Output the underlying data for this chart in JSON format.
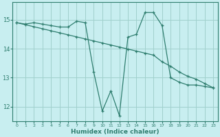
{
  "xlabel": "Humidex (Indice chaleur)",
  "bg_color": "#c8eef0",
  "line_color": "#2e7d6e",
  "grid_color": "#a0d0cc",
  "xlim": [
    -0.5,
    23.5
  ],
  "ylim": [
    11.5,
    15.6
  ],
  "yticks": [
    12,
    13,
    14,
    15
  ],
  "xticks": [
    0,
    1,
    2,
    3,
    4,
    5,
    6,
    7,
    8,
    9,
    10,
    11,
    12,
    13,
    14,
    15,
    16,
    17,
    18,
    19,
    20,
    21,
    22,
    23
  ],
  "line1_x": [
    0,
    1,
    2,
    3,
    4,
    5,
    6,
    7,
    8,
    9,
    10,
    11,
    12,
    13,
    14,
    15,
    16,
    17,
    18,
    19,
    20,
    21,
    22,
    23
  ],
  "line1_y": [
    14.9,
    14.85,
    14.9,
    14.85,
    14.8,
    14.75,
    14.75,
    14.95,
    14.9,
    13.2,
    11.85,
    12.55,
    11.7,
    14.4,
    14.5,
    15.25,
    15.25,
    14.8,
    13.0,
    12.85,
    12.75,
    12.75,
    12.7,
    12.65
  ],
  "line2_x": [
    0,
    1,
    2,
    3,
    4,
    5,
    6,
    7,
    8,
    9,
    10,
    11,
    12,
    13,
    14,
    15,
    16,
    17,
    18,
    19,
    20,
    21,
    22,
    23
  ],
  "line2_y": [
    14.9,
    14.83,
    14.76,
    14.69,
    14.62,
    14.55,
    14.48,
    14.41,
    14.34,
    14.27,
    14.2,
    14.13,
    14.06,
    13.99,
    13.92,
    13.85,
    13.78,
    13.55,
    13.4,
    13.2,
    13.05,
    12.95,
    12.8,
    12.65
  ]
}
